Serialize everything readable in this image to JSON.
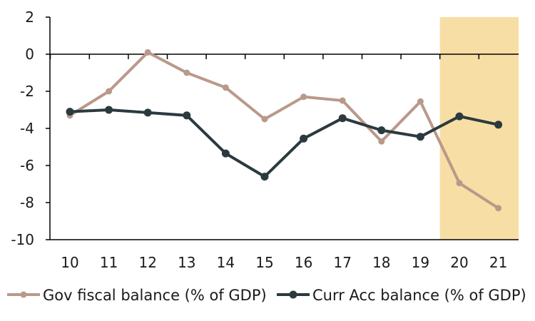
{
  "chart_data": {
    "type": "line",
    "categories": [
      "10",
      "11",
      "12",
      "13",
      "14",
      "15",
      "16",
      "17",
      "18",
      "19",
      "20",
      "21"
    ],
    "series": [
      {
        "name": "Gov fiscal balance (% of GDP)",
        "color": "#b9998a",
        "values": [
          -3.3,
          -2.0,
          0.1,
          -1.0,
          -1.8,
          -3.5,
          -2.3,
          -2.5,
          -4.7,
          -2.55,
          -6.95,
          -8.3
        ]
      },
      {
        "name": "Curr Acc balance (% of GDP)",
        "color": "#2b3a3f",
        "values": [
          -3.1,
          -3.0,
          -3.15,
          -3.3,
          -5.35,
          -6.6,
          -4.55,
          -3.45,
          -4.1,
          -4.45,
          -3.35,
          -3.8
        ]
      }
    ],
    "y_ticks": [
      "2",
      "0",
      "-2",
      "-4",
      "-6",
      "-8",
      "-10"
    ],
    "ylim": [
      -10,
      2
    ],
    "highlight": {
      "from": "20",
      "to": "21",
      "color": "#f7dea5"
    },
    "grid": false,
    "legend_position": "bottom"
  }
}
